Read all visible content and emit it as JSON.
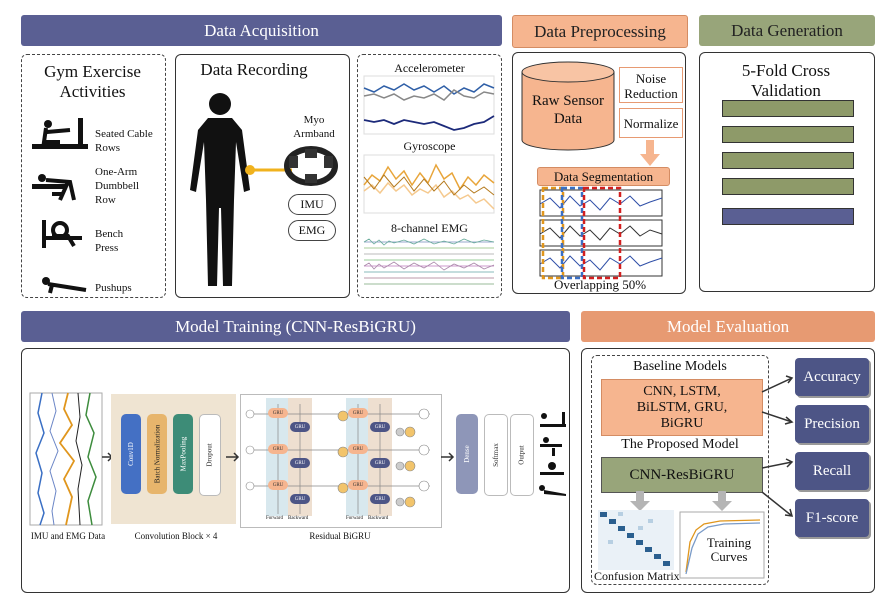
{
  "sections": {
    "acquisition": "Data Acquisition",
    "preprocessing": "Data Preprocessing",
    "generation": "Data Generation",
    "training": "Model Training (CNN-ResBiGRU)",
    "evaluation": "Model Evaluation"
  },
  "acquisition": {
    "exercises_title": "Gym Exercise Activities",
    "exercises": [
      "Seated Cable Rows",
      "One-Arm Dumbbell Row",
      "Bench Press",
      "Pushups"
    ],
    "recording_title": "Data Recording",
    "device": "Myo Armband",
    "imu": "IMU",
    "emg": "EMG",
    "signals": [
      "Accelerometer",
      "Gyroscope",
      "8-channel EMG"
    ]
  },
  "preprocessing": {
    "raw": "Raw Sensor Data",
    "noise": "Noise Reduction",
    "normalize": "Normalize",
    "segmentation": "Data Segmentation",
    "overlap": "Overlapping 50%"
  },
  "generation": {
    "cv": "5-Fold Cross Validation",
    "folds": 5
  },
  "training": {
    "input_caption": "IMU and EMG Data",
    "conv_layers": [
      "Conv1D",
      "Batch Normalization",
      "MaxPooling",
      "Dropout"
    ],
    "conv_caption": "Convolution Block × 4",
    "bigru_caption": "Residual BiGRU",
    "gru": "GRU",
    "forward": "Forward",
    "backward": "Backward",
    "head_layers": [
      "Dense",
      "Softmax",
      "Output"
    ]
  },
  "evaluation": {
    "baseline_title": "Baseline Models",
    "baseline_models": "CNN, LSTM, BiLSTM, GRU, BiGRU",
    "proposed_title": "The Proposed Model",
    "proposed_model": "CNN-ResBiGRU",
    "training_curves": "Training Curves",
    "confusion_matrix": "Confusion Matrix",
    "metrics": [
      "Accuracy",
      "Precision",
      "Recall",
      "F1-score"
    ]
  },
  "colors": {
    "header_blue": "#5a5f93",
    "header_orange": "#e79a72",
    "peach": "#f6b58f",
    "olive": "#98a57a",
    "metric": "#4d5586",
    "conv1d": "#4470c4",
    "batchnorm": "#e7b56c",
    "maxpool": "#3d8c77"
  }
}
